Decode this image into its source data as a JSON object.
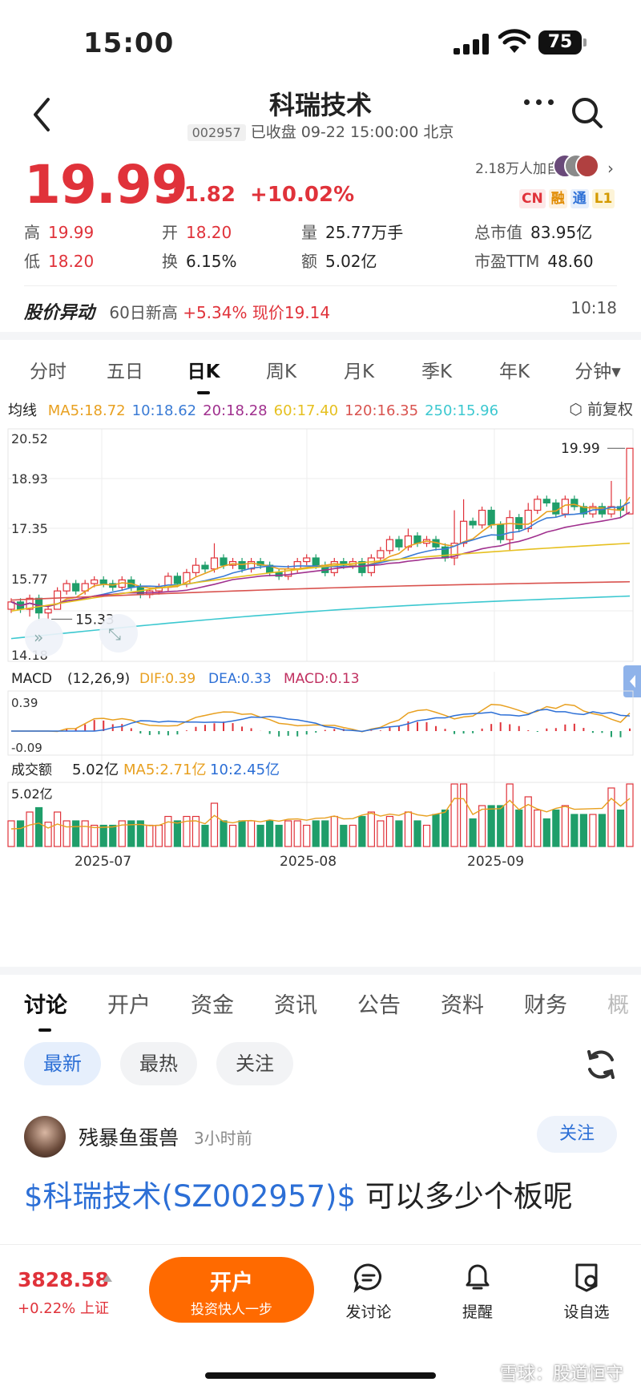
{
  "status_bar": {
    "time": "15:00",
    "battery": "75"
  },
  "header": {
    "title": "科瑞技术",
    "code": "002957",
    "status": "已收盘 09-22 15:00:00 北京"
  },
  "quote": {
    "price": "19.99",
    "change": "+1.82",
    "change_pct": "+10.02%",
    "followers": "2.18万人加自选",
    "tags": [
      "CN",
      "融",
      "通",
      "L1"
    ],
    "stats": {
      "high_label": "高",
      "high": "19.99",
      "open_label": "开",
      "open": "18.20",
      "volume_label": "量",
      "volume": "25.77万手",
      "mktcap_label": "总市值",
      "mktcap": "83.95亿",
      "low_label": "低",
      "low": "18.20",
      "turnover_label": "换",
      "turnover": "6.15%",
      "amount_label": "额",
      "amount": "5.02亿",
      "pe_label": "市盈TTM",
      "pe": "48.60"
    }
  },
  "abnormal": {
    "label": "股价异动",
    "text": "60日新高",
    "rise": "+5.34%",
    "price_text": "现价19.14",
    "time": "10:18"
  },
  "period_tabs": [
    "分时",
    "五日",
    "日K",
    "周K",
    "月K",
    "季K",
    "年K",
    "分钟"
  ],
  "active_period": "日K",
  "ma_legend": {
    "label": "均线",
    "items": [
      {
        "text": "MA5:18.72",
        "color": "#e8a020"
      },
      {
        "text": "10:18.62",
        "color": "#3a7bd5"
      },
      {
        "text": "20:18.28",
        "color": "#a0308e"
      },
      {
        "text": "60:17.40",
        "color": "#e6c020"
      },
      {
        "text": "120:16.35",
        "color": "#d9534f"
      },
      {
        "text": "250:15.96",
        "color": "#3cc8d0"
      }
    ],
    "adjust": "前复权"
  },
  "chart_data": {
    "type": "candlestick",
    "y_ticks": [
      "20.52",
      "18.93",
      "17.35",
      "15.77",
      "14.18"
    ],
    "ylim": [
      14.18,
      20.52
    ],
    "high_marker": "19.99",
    "low_marker": "15.33",
    "x_labels": [
      "2025-07",
      "2025-08",
      "2025-09"
    ],
    "candles": [
      [
        15.6,
        15.8,
        15.5,
        15.9
      ],
      [
        15.8,
        15.6,
        15.5,
        15.9
      ],
      [
        15.6,
        15.9,
        15.4,
        16.0
      ],
      [
        15.9,
        15.5,
        15.3,
        16.0
      ],
      [
        15.5,
        15.6,
        15.33,
        15.7
      ],
      [
        15.6,
        16.1,
        15.6,
        16.2
      ],
      [
        16.1,
        16.3,
        16.0,
        16.4
      ],
      [
        16.3,
        16.1,
        16.0,
        16.4
      ],
      [
        16.1,
        16.3,
        16.0,
        16.4
      ],
      [
        16.3,
        16.4,
        16.2,
        16.5
      ],
      [
        16.4,
        16.3,
        16.2,
        16.5
      ],
      [
        16.3,
        16.2,
        16.1,
        16.4
      ],
      [
        16.2,
        16.4,
        16.1,
        16.5
      ],
      [
        16.4,
        16.2,
        16.1,
        16.5
      ],
      [
        16.2,
        16.0,
        15.9,
        16.3
      ],
      [
        16.0,
        16.1,
        15.9,
        16.2
      ],
      [
        16.1,
        16.2,
        16.0,
        16.3
      ],
      [
        16.2,
        16.5,
        16.1,
        16.6
      ],
      [
        16.5,
        16.3,
        16.2,
        16.6
      ],
      [
        16.3,
        16.6,
        16.2,
        16.7
      ],
      [
        16.6,
        16.8,
        16.5,
        17.0
      ],
      [
        16.8,
        16.7,
        16.6,
        16.9
      ],
      [
        16.7,
        17.0,
        16.6,
        17.4
      ],
      [
        17.0,
        16.8,
        16.7,
        17.1
      ],
      [
        16.8,
        16.9,
        16.7,
        17.0
      ],
      [
        16.9,
        16.7,
        16.6,
        17.0
      ],
      [
        16.7,
        16.9,
        16.6,
        17.0
      ],
      [
        16.9,
        16.8,
        16.7,
        17.0
      ],
      [
        16.8,
        16.6,
        16.5,
        16.9
      ],
      [
        16.6,
        16.5,
        16.4,
        16.7
      ],
      [
        16.5,
        16.7,
        16.4,
        16.8
      ],
      [
        16.7,
        16.9,
        16.6,
        17.0
      ],
      [
        16.9,
        17.0,
        16.8,
        17.1
      ],
      [
        17.0,
        16.8,
        16.7,
        17.1
      ],
      [
        16.8,
        16.6,
        16.5,
        16.9
      ],
      [
        16.6,
        16.9,
        16.5,
        17.0
      ],
      [
        16.9,
        16.8,
        16.7,
        17.0
      ],
      [
        16.8,
        16.9,
        16.7,
        17.0
      ],
      [
        16.9,
        16.6,
        16.5,
        17.0
      ],
      [
        16.6,
        17.0,
        16.5,
        17.1
      ],
      [
        17.0,
        17.2,
        16.9,
        17.3
      ],
      [
        17.2,
        17.5,
        17.1,
        17.6
      ],
      [
        17.5,
        17.3,
        17.2,
        17.6
      ],
      [
        17.3,
        17.6,
        17.2,
        17.8
      ],
      [
        17.6,
        17.4,
        17.3,
        17.7
      ],
      [
        17.4,
        17.5,
        17.3,
        17.6
      ],
      [
        17.5,
        17.3,
        17.2,
        17.6
      ],
      [
        17.3,
        17.0,
        16.9,
        17.4
      ],
      [
        17.0,
        17.4,
        16.8,
        18.3
      ],
      [
        17.4,
        18.0,
        17.3,
        18.6
      ],
      [
        18.0,
        17.9,
        17.8,
        18.1
      ],
      [
        17.9,
        18.3,
        17.8,
        18.4
      ],
      [
        18.3,
        17.9,
        17.8,
        18.4
      ],
      [
        17.9,
        17.5,
        17.4,
        18.0
      ],
      [
        17.5,
        18.1,
        17.2,
        18.3
      ],
      [
        18.1,
        17.8,
        17.7,
        18.2
      ],
      [
        17.8,
        18.3,
        17.7,
        18.5
      ],
      [
        18.3,
        18.6,
        18.2,
        18.7
      ],
      [
        18.6,
        18.5,
        18.4,
        18.7
      ],
      [
        18.5,
        18.2,
        18.1,
        18.6
      ],
      [
        18.2,
        18.6,
        18.1,
        18.7
      ],
      [
        18.6,
        18.4,
        18.3,
        18.7
      ],
      [
        18.4,
        18.2,
        18.1,
        18.5
      ],
      [
        18.2,
        18.4,
        18.1,
        18.5
      ],
      [
        18.4,
        18.2,
        18.1,
        18.5
      ],
      [
        18.2,
        18.4,
        18.1,
        19.1
      ],
      [
        18.4,
        18.3,
        18.1,
        18.6
      ],
      [
        18.2,
        19.99,
        18.2,
        19.99
      ]
    ]
  },
  "macd": {
    "label": "MACD",
    "params": "(12,26,9)",
    "dif": "DIF:0.39",
    "dea": "DEA:0.33",
    "macd": "MACD:0.13",
    "top": "0.39",
    "bottom": "-0.09"
  },
  "volume": {
    "label": "成交额",
    "value": "5.02亿",
    "ma5": "MA5:2.71亿",
    "ma10": "10:2.45亿",
    "top": "5.02亿"
  },
  "discussion_tabs": [
    "讨论",
    "开户",
    "资金",
    "资讯",
    "公告",
    "资料",
    "财务",
    "概"
  ],
  "filters": [
    "最新",
    "最热",
    "关注"
  ],
  "post": {
    "author": "残暴鱼蛋兽",
    "time": "3小时前",
    "follow": "关注",
    "link": "$科瑞技术(SZ002957)$",
    "text": "可以多少个板呢"
  },
  "bottom_bar": {
    "index_value": "3828.58",
    "index_change": "+0.22%",
    "index_name": "上证",
    "open_label": "开户",
    "open_sub": "投资快人一步",
    "nav": [
      "发讨论",
      "提醒",
      "设自选"
    ]
  },
  "watermark": "雪球：股道恒守"
}
